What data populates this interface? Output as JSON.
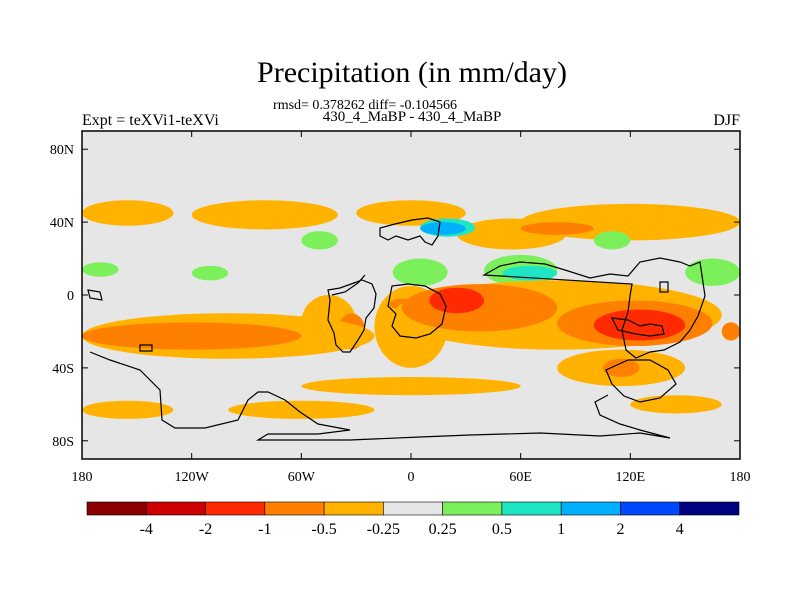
{
  "chart_data": {
    "type": "heatmap",
    "title": "Precipitation (in mm/day)",
    "subtitle": "rmsd= 0.378262 diff= -0.104566",
    "run_label": "430_4_MaBP - 430_4_MaBP",
    "left_label": "Expt = teXVi1-teXVi",
    "right_label": "DJF",
    "x_axis": {
      "ticks": [
        -180,
        -120,
        -60,
        0,
        60,
        120,
        180
      ],
      "tick_labels": [
        "180",
        "120W",
        "60W",
        "0",
        "60E",
        "120E",
        "180"
      ]
    },
    "y_axis": {
      "ticks": [
        80,
        40,
        0,
        -40,
        -80
      ],
      "tick_labels": [
        "80N",
        "40N",
        "0",
        "40S",
        "80S"
      ],
      "range": [
        -90,
        90
      ]
    },
    "colorbar": {
      "labels": [
        "-4",
        "-2",
        "-1",
        "-0.5",
        "-0.25",
        "0.25",
        "0.5",
        "1",
        "2",
        "4"
      ],
      "colors": [
        "#8b0000",
        "#cc0000",
        "#ff2a00",
        "#ff7f00",
        "#ffb300",
        "#e6e6e6",
        "#7cf05a",
        "#1ee5c4",
        "#00b0ff",
        "#0048ff",
        "#000080"
      ]
    },
    "regions": [
      {
        "bin": 4,
        "lon": [
          -180,
          -130
        ],
        "lat": [
          38,
          52
        ]
      },
      {
        "bin": 4,
        "lon": [
          -120,
          -40
        ],
        "lat": [
          36,
          52
        ]
      },
      {
        "bin": 4,
        "lon": [
          -30,
          30
        ],
        "lat": [
          38,
          52
        ]
      },
      {
        "bin": 4,
        "lon": [
          25,
          85
        ],
        "lat": [
          25,
          42
        ]
      },
      {
        "bin": 4,
        "lon": [
          60,
          180
        ],
        "lat": [
          30,
          50
        ]
      },
      {
        "bin": 7,
        "lon": [
          5,
          35
        ],
        "lat": [
          32,
          42
        ]
      },
      {
        "bin": 8,
        "lon": [
          5,
          30
        ],
        "lat": [
          33,
          40
        ]
      },
      {
        "bin": 3,
        "lon": [
          60,
          100
        ],
        "lat": [
          33,
          40
        ]
      },
      {
        "bin": 6,
        "lon": [
          -60,
          -40
        ],
        "lat": [
          25,
          35
        ]
      },
      {
        "bin": 6,
        "lon": [
          100,
          120
        ],
        "lat": [
          25,
          35
        ]
      },
      {
        "bin": 6,
        "lon": [
          -180,
          -160
        ],
        "lat": [
          10,
          18
        ]
      },
      {
        "bin": 6,
        "lon": [
          -120,
          -100
        ],
        "lat": [
          8,
          16
        ]
      },
      {
        "bin": 6,
        "lon": [
          -10,
          20
        ],
        "lat": [
          5,
          20
        ]
      },
      {
        "bin": 6,
        "lon": [
          40,
          80
        ],
        "lat": [
          5,
          22
        ]
      },
      {
        "bin": 7,
        "lon": [
          50,
          80
        ],
        "lat": [
          8,
          16
        ]
      },
      {
        "bin": 6,
        "lon": [
          150,
          180
        ],
        "lat": [
          5,
          20
        ]
      },
      {
        "bin": 4,
        "lon": [
          -60,
          -30
        ],
        "lat": [
          -30,
          0
        ]
      },
      {
        "bin": 3,
        "lon": [
          -40,
          -25
        ],
        "lat": [
          -30,
          -10
        ]
      },
      {
        "bin": 4,
        "lon": [
          -20,
          20
        ],
        "lat": [
          -40,
          5
        ]
      },
      {
        "bin": 3,
        "lon": [
          -12,
          5
        ],
        "lat": [
          -8,
          -2
        ]
      },
      {
        "bin": 4,
        "lon": [
          -10,
          170
        ],
        "lat": [
          -30,
          8
        ]
      },
      {
        "bin": 3,
        "lon": [
          -5,
          80
        ],
        "lat": [
          -20,
          6
        ]
      },
      {
        "bin": 2,
        "lon": [
          10,
          40
        ],
        "lat": [
          -10,
          4
        ]
      },
      {
        "bin": 3,
        "lon": [
          80,
          165
        ],
        "lat": [
          -28,
          -3
        ]
      },
      {
        "bin": 2,
        "lon": [
          100,
          150
        ],
        "lat": [
          -25,
          -8
        ]
      },
      {
        "bin": 4,
        "lon": [
          -180,
          -20
        ],
        "lat": [
          -35,
          -10
        ]
      },
      {
        "bin": 3,
        "lon": [
          -180,
          -60
        ],
        "lat": [
          -30,
          -15
        ]
      },
      {
        "bin": 4,
        "lon": [
          80,
          150
        ],
        "lat": [
          -50,
          -30
        ]
      },
      {
        "bin": 3,
        "lon": [
          105,
          125
        ],
        "lat": [
          -45,
          -35
        ]
      },
      {
        "bin": 4,
        "lon": [
          -60,
          60
        ],
        "lat": [
          -55,
          -45
        ]
      },
      {
        "bin": 4,
        "lon": [
          -180,
          -130
        ],
        "lat": [
          -68,
          -58
        ]
      },
      {
        "bin": 4,
        "lon": [
          -100,
          -20
        ],
        "lat": [
          -68,
          -58
        ]
      },
      {
        "bin": 4,
        "lon": [
          120,
          170
        ],
        "lat": [
          -65,
          -55
        ]
      },
      {
        "bin": 3,
        "lon": [
          170,
          180
        ],
        "lat": [
          -25,
          -15
        ]
      }
    ]
  }
}
